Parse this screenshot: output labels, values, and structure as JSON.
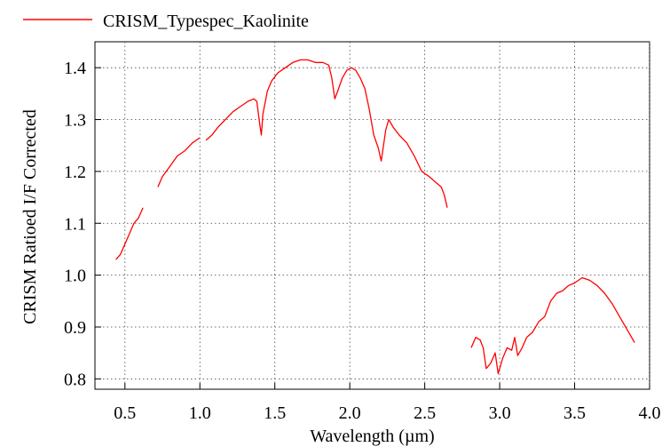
{
  "chart_data": {
    "type": "line",
    "title": "",
    "xlabel": "Wavelength (µm)",
    "ylabel": "CRISM Ratioed I/F Corrected",
    "xlim": [
      0.3,
      4.0
    ],
    "ylim": [
      0.78,
      1.45
    ],
    "x_ticks": [
      0.5,
      1.0,
      1.5,
      2.0,
      2.5,
      3.0,
      3.5,
      4.0
    ],
    "x_tick_labels": [
      "0.5",
      "1.0",
      "1.5",
      "2.0",
      "2.5",
      "3.0",
      "3.5",
      "4.0"
    ],
    "y_ticks": [
      0.8,
      0.9,
      1.0,
      1.1,
      1.2,
      1.3,
      1.4
    ],
    "y_tick_labels": [
      "0.8",
      "0.9",
      "1.0",
      "1.1",
      "1.2",
      "1.3",
      "1.4"
    ],
    "grid": true,
    "legend_position": "top-left",
    "series": [
      {
        "name": "CRISM_Typespec_Kaolinite",
        "color": "#ff0000",
        "segments": [
          [
            [
              0.44,
              1.03
            ],
            [
              0.47,
              1.04
            ],
            [
              0.5,
              1.06
            ],
            [
              0.53,
              1.08
            ],
            [
              0.56,
              1.1
            ],
            [
              0.59,
              1.11
            ],
            [
              0.62,
              1.13
            ]
          ],
          [
            [
              0.72,
              1.17
            ],
            [
              0.75,
              1.19
            ],
            [
              0.8,
              1.21
            ],
            [
              0.85,
              1.23
            ],
            [
              0.9,
              1.24
            ],
            [
              0.95,
              1.255
            ],
            [
              1.0,
              1.265
            ]
          ],
          [
            [
              1.04,
              1.26
            ],
            [
              1.08,
              1.27
            ],
            [
              1.12,
              1.285
            ],
            [
              1.17,
              1.3
            ],
            [
              1.22,
              1.315
            ],
            [
              1.27,
              1.325
            ],
            [
              1.32,
              1.335
            ],
            [
              1.36,
              1.34
            ],
            [
              1.38,
              1.335
            ],
            [
              1.4,
              1.29
            ],
            [
              1.41,
              1.27
            ],
            [
              1.42,
              1.31
            ],
            [
              1.45,
              1.355
            ],
            [
              1.48,
              1.375
            ],
            [
              1.52,
              1.39
            ],
            [
              1.57,
              1.4
            ],
            [
              1.62,
              1.41
            ],
            [
              1.67,
              1.415
            ],
            [
              1.72,
              1.415
            ],
            [
              1.77,
              1.41
            ],
            [
              1.82,
              1.41
            ],
            [
              1.86,
              1.405
            ],
            [
              1.88,
              1.38
            ],
            [
              1.9,
              1.34
            ],
            [
              1.92,
              1.355
            ],
            [
              1.95,
              1.38
            ],
            [
              1.98,
              1.395
            ],
            [
              2.01,
              1.4
            ],
            [
              2.04,
              1.395
            ],
            [
              2.07,
              1.38
            ],
            [
              2.1,
              1.36
            ],
            [
              2.13,
              1.32
            ],
            [
              2.16,
              1.27
            ],
            [
              2.19,
              1.245
            ],
            [
              2.21,
              1.22
            ],
            [
              2.22,
              1.24
            ],
            [
              2.24,
              1.28
            ],
            [
              2.26,
              1.3
            ],
            [
              2.29,
              1.285
            ],
            [
              2.33,
              1.27
            ],
            [
              2.38,
              1.255
            ],
            [
              2.43,
              1.23
            ],
            [
              2.48,
              1.2
            ],
            [
              2.53,
              1.19
            ],
            [
              2.57,
              1.18
            ],
            [
              2.61,
              1.17
            ],
            [
              2.63,
              1.155
            ],
            [
              2.65,
              1.13
            ]
          ],
          [
            [
              2.81,
              0.86
            ],
            [
              2.84,
              0.88
            ],
            [
              2.87,
              0.875
            ],
            [
              2.89,
              0.86
            ],
            [
              2.91,
              0.82
            ],
            [
              2.94,
              0.83
            ],
            [
              2.97,
              0.85
            ],
            [
              2.99,
              0.81
            ],
            [
              3.02,
              0.84
            ],
            [
              3.05,
              0.86
            ],
            [
              3.08,
              0.855
            ],
            [
              3.1,
              0.88
            ],
            [
              3.12,
              0.845
            ],
            [
              3.15,
              0.86
            ],
            [
              3.18,
              0.88
            ],
            [
              3.22,
              0.89
            ],
            [
              3.26,
              0.91
            ],
            [
              3.3,
              0.92
            ],
            [
              3.34,
              0.95
            ],
            [
              3.38,
              0.965
            ],
            [
              3.42,
              0.97
            ],
            [
              3.46,
              0.98
            ],
            [
              3.5,
              0.985
            ],
            [
              3.55,
              0.995
            ],
            [
              3.6,
              0.99
            ],
            [
              3.65,
              0.98
            ],
            [
              3.7,
              0.965
            ],
            [
              3.75,
              0.945
            ],
            [
              3.8,
              0.92
            ],
            [
              3.85,
              0.895
            ],
            [
              3.9,
              0.87
            ]
          ]
        ]
      }
    ]
  }
}
